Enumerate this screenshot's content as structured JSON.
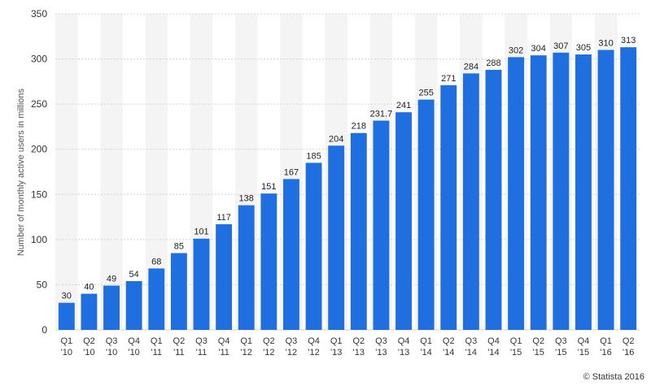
{
  "chart_data": {
    "type": "bar",
    "categories": [
      [
        "Q1",
        "'10"
      ],
      [
        "Q2",
        "'10"
      ],
      [
        "Q3",
        "'10"
      ],
      [
        "Q4",
        "'10"
      ],
      [
        "Q1",
        "'11"
      ],
      [
        "Q2",
        "'11"
      ],
      [
        "Q3",
        "'11"
      ],
      [
        "Q4",
        "'11"
      ],
      [
        "Q1",
        "'12"
      ],
      [
        "Q2",
        "'12"
      ],
      [
        "Q3",
        "'12"
      ],
      [
        "Q4",
        "'12"
      ],
      [
        "Q1",
        "'13"
      ],
      [
        "Q2",
        "'13"
      ],
      [
        "Q3",
        "'13"
      ],
      [
        "Q4",
        "'13"
      ],
      [
        "Q1",
        "'14"
      ],
      [
        "Q2",
        "'14"
      ],
      [
        "Q3",
        "'14"
      ],
      [
        "Q4",
        "'14"
      ],
      [
        "Q1",
        "'15"
      ],
      [
        "Q2",
        "'15"
      ],
      [
        "Q3",
        "'15"
      ],
      [
        "Q4",
        "'15"
      ],
      [
        "Q1",
        "'16"
      ],
      [
        "Q2",
        "'16"
      ]
    ],
    "values": [
      30,
      40,
      49,
      54,
      68,
      85,
      101,
      117,
      138,
      151,
      167,
      185,
      204,
      218,
      231.7,
      241,
      255,
      271,
      284,
      288,
      302,
      304,
      307,
      305,
      310,
      313
    ],
    "value_labels": [
      "30",
      "40",
      "49",
      "54",
      "68",
      "85",
      "101",
      "117",
      "138",
      "151",
      "167",
      "185",
      "204",
      "218",
      "231.7",
      "241",
      "255",
      "271",
      "284",
      "288",
      "302",
      "304",
      "307",
      "305",
      "310",
      "313"
    ],
    "ylabel": "Number of monthly active users in millions",
    "ylim": [
      0,
      350
    ],
    "yticks": [
      0,
      50,
      100,
      150,
      200,
      250,
      300,
      350
    ],
    "grid": "horizontal dashed",
    "alternating_column_shading": true,
    "colors": {
      "bar": "#1f6fe0",
      "shade": "#f4f4f4",
      "grid": "#d4d4d4"
    }
  },
  "credit": "© Statista 2016"
}
